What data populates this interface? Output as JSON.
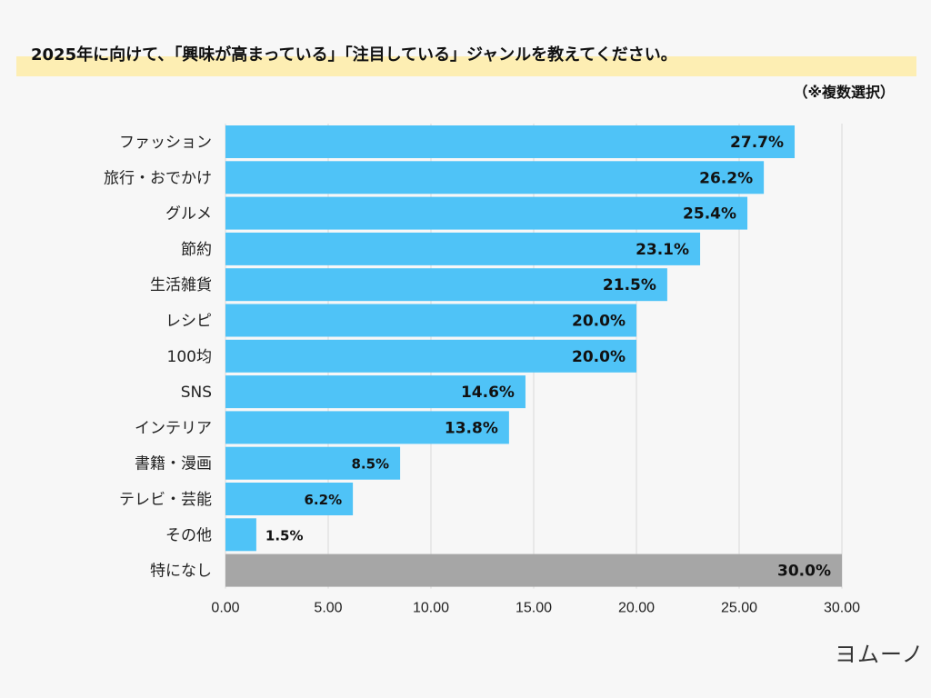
{
  "header": {
    "question": "2025年に向けて、「興味が高まっている」「注目している」ジャンルを教えてください。",
    "note": "（※複数選択）"
  },
  "brand": {
    "logo_text": "ヨムーノ"
  },
  "colors": {
    "bar": "#4fc3f7",
    "bar_none": "#a6a6a6",
    "grid": "#d9d9d9",
    "band": "#fdeeb3"
  },
  "chart_data": {
    "type": "bar",
    "orientation": "horizontal",
    "categories": [
      "ファッション",
      "旅行・おでかけ",
      "グルメ",
      "節約",
      "生活雑貨",
      "レシピ",
      "100均",
      "SNS",
      "インテリア",
      "書籍・漫画",
      "テレビ・芸能",
      "その他",
      "特になし"
    ],
    "values": [
      27.7,
      26.2,
      25.4,
      23.1,
      21.5,
      20.0,
      20.0,
      14.6,
      13.8,
      8.5,
      6.2,
      1.5,
      30.0
    ],
    "value_labels": [
      "27.7%",
      "26.2%",
      "25.4%",
      "23.1%",
      "21.5%",
      "20.0%",
      "20.0%",
      "14.6%",
      "13.8%",
      "8.5%",
      "6.2%",
      "1.5%",
      "30.0%"
    ],
    "highlight_category": "特になし",
    "xlim": [
      0,
      30
    ],
    "xticks": [
      "0.00",
      "5.00",
      "10.00",
      "15.00",
      "20.00",
      "25.00",
      "30.00"
    ],
    "grid": true,
    "unit": "%"
  }
}
